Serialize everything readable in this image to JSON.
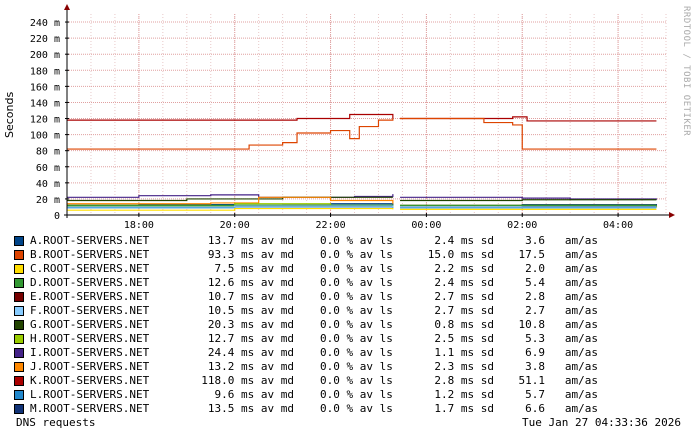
{
  "chart_data": {
    "type": "line",
    "ylabel": "Seconds",
    "yticks": [
      "0",
      "20 m",
      "40 m",
      "60 m",
      "80 m",
      "100 m",
      "120 m",
      "140 m",
      "160 m",
      "180 m",
      "200 m",
      "220 m",
      "240 m"
    ],
    "ytick_values": [
      0,
      20,
      40,
      60,
      80,
      100,
      120,
      140,
      160,
      180,
      200,
      220,
      240
    ],
    "ylim": [
      0,
      250
    ],
    "xticks": [
      "18:00",
      "20:00",
      "22:00",
      "00:00",
      "02:00",
      "04:00"
    ],
    "xtick_hours": [
      18,
      20,
      22,
      24,
      26,
      28
    ],
    "xlim": [
      16.5,
      29.0
    ],
    "gap_hours": [
      23.3,
      23.45
    ],
    "grid": true,
    "series": [
      {
        "name": "K.ROOT-SERVERS.NET",
        "color": "#aa0000",
        "segments": [
          [
            16.5,
            118
          ],
          [
            19.2,
            118
          ],
          [
            21.3,
            120
          ],
          [
            22.4,
            125
          ],
          [
            23.3,
            120
          ],
          [
            23.45,
            120
          ],
          [
            24.5,
            120
          ],
          [
            25.8,
            122
          ],
          [
            26.1,
            117
          ],
          [
            28.8,
            117
          ]
        ]
      },
      {
        "name": "B.ROOT-SERVERS.NET",
        "color": "#dd4400",
        "segments": [
          [
            16.5,
            82
          ],
          [
            19.4,
            82
          ],
          [
            20.3,
            87
          ],
          [
            21.0,
            90
          ],
          [
            21.3,
            102
          ],
          [
            22.0,
            105
          ],
          [
            22.4,
            95
          ],
          [
            22.6,
            110
          ],
          [
            23.0,
            118
          ],
          [
            23.3,
            120
          ],
          [
            23.45,
            120
          ],
          [
            24.5,
            120
          ],
          [
            25.2,
            115
          ],
          [
            25.8,
            112
          ],
          [
            26.0,
            82
          ],
          [
            28.8,
            82
          ]
        ]
      },
      {
        "name": "I.ROOT-SERVERS.NET",
        "color": "#442288",
        "segments": [
          [
            16.5,
            22
          ],
          [
            17.5,
            22
          ],
          [
            18.0,
            24
          ],
          [
            19.5,
            25
          ],
          [
            20.5,
            22
          ],
          [
            22.5,
            23
          ],
          [
            23.3,
            26
          ],
          [
            23.45,
            22
          ],
          [
            26.0,
            21
          ],
          [
            27.0,
            20
          ],
          [
            28.8,
            19
          ]
        ]
      },
      {
        "name": "G.ROOT-SERVERS.NET",
        "color": "#224400",
        "segments": [
          [
            16.5,
            18
          ],
          [
            19.0,
            20
          ],
          [
            21.0,
            22
          ],
          [
            23.3,
            22
          ],
          [
            23.45,
            18
          ],
          [
            26.0,
            19
          ],
          [
            28.8,
            19
          ]
        ]
      },
      {
        "name": "A.ROOT-SERVERS.NET",
        "color": "#004488",
        "segments": [
          [
            16.5,
            12
          ],
          [
            18.0,
            13
          ],
          [
            20.0,
            12
          ],
          [
            22.0,
            14
          ],
          [
            23.3,
            13
          ],
          [
            23.45,
            12
          ],
          [
            26.0,
            13
          ],
          [
            28.8,
            12
          ]
        ]
      },
      {
        "name": "M.ROOT-SERVERS.NET",
        "color": "#113377",
        "segments": [
          [
            16.5,
            10
          ],
          [
            18.0,
            11
          ],
          [
            21.0,
            12
          ],
          [
            23.3,
            12
          ],
          [
            23.45,
            10
          ],
          [
            26.0,
            11
          ],
          [
            28.8,
            10
          ]
        ]
      },
      {
        "name": "J.ROOT-SERVERS.NET",
        "color": "#ff8800",
        "segments": [
          [
            16.5,
            14
          ],
          [
            19.5,
            15
          ],
          [
            20.5,
            22
          ],
          [
            22.0,
            18
          ],
          [
            23.3,
            14
          ],
          [
            23.45,
            12
          ],
          [
            28.8,
            12
          ]
        ]
      },
      {
        "name": "H.ROOT-SERVERS.NET",
        "color": "#99cc00",
        "segments": [
          [
            16.5,
            11
          ],
          [
            20.0,
            14
          ],
          [
            22.0,
            12
          ],
          [
            23.3,
            11
          ],
          [
            23.45,
            10
          ],
          [
            28.8,
            11
          ]
        ]
      },
      {
        "name": "L.ROOT-SERVERS.NET",
        "color": "#2288cc",
        "segments": [
          [
            16.5,
            9
          ],
          [
            20.0,
            10
          ],
          [
            23.3,
            9
          ],
          [
            23.45,
            9
          ],
          [
            28.8,
            9
          ]
        ]
      },
      {
        "name": "D.ROOT-SERVERS.NET",
        "color": "#339933",
        "segments": [
          [
            16.5,
            12
          ],
          [
            20.0,
            12
          ],
          [
            23.3,
            13
          ],
          [
            23.45,
            12
          ],
          [
            28.8,
            12
          ]
        ]
      },
      {
        "name": "E.ROOT-SERVERS.NET",
        "color": "#770000",
        "segments": [
          [
            16.5,
            10
          ],
          [
            20.0,
            11
          ],
          [
            23.3,
            10
          ],
          [
            23.45,
            10
          ],
          [
            28.8,
            10
          ]
        ]
      },
      {
        "name": "F.ROOT-SERVERS.NET",
        "color": "#88ccff",
        "segments": [
          [
            16.5,
            10
          ],
          [
            20.0,
            11
          ],
          [
            23.3,
            10
          ],
          [
            23.45,
            10
          ],
          [
            28.8,
            10
          ]
        ]
      },
      {
        "name": "C.ROOT-SERVERS.NET",
        "color": "#ffdd00",
        "segments": [
          [
            16.5,
            6
          ],
          [
            20.0,
            8
          ],
          [
            23.3,
            7
          ],
          [
            23.45,
            7
          ],
          [
            28.8,
            7
          ]
        ]
      }
    ]
  },
  "legend": [
    {
      "name": "A.ROOT-SERVERS.NET",
      "color": "#004488",
      "avg": "13.7 ms av md",
      "loss": "0.0 % av ls",
      "sd": "2.4 ms sd",
      "am": "3.6   am/as"
    },
    {
      "name": "B.ROOT-SERVERS.NET",
      "color": "#dd4400",
      "avg": "93.3 ms av md",
      "loss": "0.0 % av ls",
      "sd": "15.0 ms sd",
      "am": "17.5   am/as"
    },
    {
      "name": "C.ROOT-SERVERS.NET",
      "color": "#ffdd00",
      "avg": "7.5 ms av md",
      "loss": "0.0 % av ls",
      "sd": "2.2 ms sd",
      "am": "2.0   am/as"
    },
    {
      "name": "D.ROOT-SERVERS.NET",
      "color": "#339933",
      "avg": "12.6 ms av md",
      "loss": "0.0 % av ls",
      "sd": "2.4 ms sd",
      "am": "5.4   am/as"
    },
    {
      "name": "E.ROOT-SERVERS.NET",
      "color": "#770000",
      "avg": "10.7 ms av md",
      "loss": "0.0 % av ls",
      "sd": "2.7 ms sd",
      "am": "2.8   am/as"
    },
    {
      "name": "F.ROOT-SERVERS.NET",
      "color": "#88ccff",
      "avg": "10.5 ms av md",
      "loss": "0.0 % av ls",
      "sd": "2.7 ms sd",
      "am": "2.7   am/as"
    },
    {
      "name": "G.ROOT-SERVERS.NET",
      "color": "#224400",
      "avg": "20.3 ms av md",
      "loss": "0.0 % av ls",
      "sd": "0.8 ms sd",
      "am": "10.8   am/as"
    },
    {
      "name": "H.ROOT-SERVERS.NET",
      "color": "#99cc00",
      "avg": "12.7 ms av md",
      "loss": "0.0 % av ls",
      "sd": "2.5 ms sd",
      "am": "5.3   am/as"
    },
    {
      "name": "I.ROOT-SERVERS.NET",
      "color": "#442288",
      "avg": "24.4 ms av md",
      "loss": "0.0 % av ls",
      "sd": "1.1 ms sd",
      "am": "6.9   am/as"
    },
    {
      "name": "J.ROOT-SERVERS.NET",
      "color": "#ff8800",
      "avg": "13.2 ms av md",
      "loss": "0.0 % av ls",
      "sd": "2.3 ms sd",
      "am": "3.8   am/as"
    },
    {
      "name": "K.ROOT-SERVERS.NET",
      "color": "#aa0000",
      "avg": "118.0 ms av md",
      "loss": "0.0 % av ls",
      "sd": "2.8 ms sd",
      "am": "51.1   am/as"
    },
    {
      "name": "L.ROOT-SERVERS.NET",
      "color": "#2288cc",
      "avg": "9.6 ms av md",
      "loss": "0.0 % av ls",
      "sd": "1.2 ms sd",
      "am": "5.7   am/as"
    },
    {
      "name": "M.ROOT-SERVERS.NET",
      "color": "#113377",
      "avg": "13.5 ms av md",
      "loss": "0.0 % av ls",
      "sd": "1.7 ms sd",
      "am": "6.6   am/as"
    }
  ],
  "footer": {
    "left": "DNS requests",
    "right": "Tue Jan 27 04:33:36 2026"
  },
  "watermark": "RRDTOOL / TOBI OETIKER"
}
